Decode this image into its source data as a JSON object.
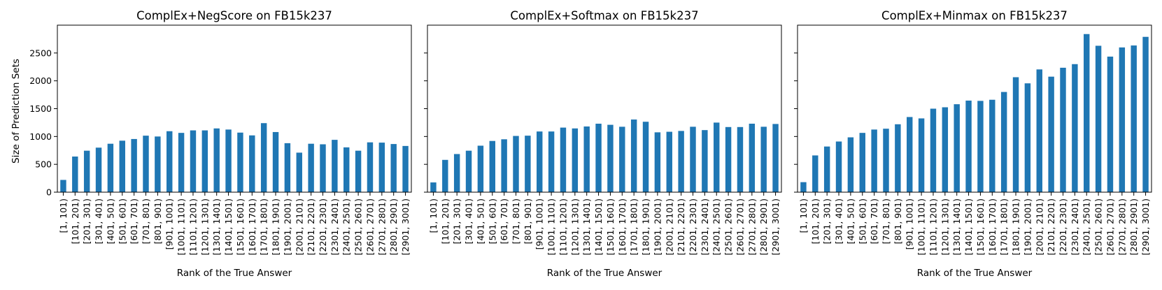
{
  "figure": {
    "shared_ylabel": "Size of Prediction Sets",
    "bar_color": "#1f77b4"
  },
  "chart_data": [
    {
      "type": "bar",
      "title": "ComplEx+NegScore on FB15k237",
      "xlabel": "Rank of the True Answer",
      "ylabel": "Size of Prediction Sets",
      "ylim": [
        0,
        3000
      ],
      "yticks": [
        0,
        500,
        1000,
        1500,
        2000,
        2500
      ],
      "categories": [
        "[1, 101)",
        "[101, 201)",
        "[201, 301)",
        "[301, 401)",
        "[401, 501)",
        "[501, 601)",
        "[601, 701)",
        "[701, 801)",
        "[801, 901)",
        "[901, 1001)",
        "[1001, 1101)",
        "[1101, 1201)",
        "[1201, 1301)",
        "[1301, 1401)",
        "[1401, 1501)",
        "[1501, 1601)",
        "[1601, 1701)",
        "[1701, 1801)",
        "[1801, 1901)",
        "[1901, 2001)",
        "[2001, 2101)",
        "[2101, 2201)",
        "[2201, 2301)",
        "[2301, 2401)",
        "[2401, 2501)",
        "[2501, 2601)",
        "[2601, 2701)",
        "[2701, 2801)",
        "[2801, 2901)",
        "[2901, 3001)"
      ],
      "values": [
        220,
        640,
        745,
        800,
        870,
        925,
        955,
        1015,
        1000,
        1095,
        1065,
        1110,
        1110,
        1145,
        1125,
        1070,
        1020,
        1240,
        1080,
        880,
        710,
        870,
        860,
        940,
        805,
        745,
        895,
        890,
        865,
        830
      ]
    },
    {
      "type": "bar",
      "title": "ComplEx+Softmax on FB15k237",
      "xlabel": "Rank of the True Answer",
      "ylim": [
        0,
        3000
      ],
      "yticks": [
        0,
        500,
        1000,
        1500,
        2000,
        2500
      ],
      "categories": [
        "[1, 101)",
        "[101, 201)",
        "[201, 301)",
        "[301, 401)",
        "[401, 501)",
        "[501, 601)",
        "[601, 701)",
        "[701, 801)",
        "[801, 901)",
        "[901, 1001)",
        "[1001, 1101)",
        "[1101, 1201)",
        "[1201, 1301)",
        "[1301, 1401)",
        "[1401, 1501)",
        "[1501, 1601)",
        "[1601, 1701)",
        "[1701, 1801)",
        "[1801, 1901)",
        "[1901, 2001)",
        "[2001, 2101)",
        "[2101, 2201)",
        "[2201, 2301)",
        "[2301, 2401)",
        "[2401, 2501)",
        "[2501, 2601)",
        "[2601, 2701)",
        "[2701, 2801)",
        "[2801, 2901)",
        "[2901, 3001)"
      ],
      "values": [
        175,
        580,
        685,
        745,
        835,
        920,
        950,
        1010,
        1015,
        1090,
        1090,
        1160,
        1145,
        1180,
        1230,
        1210,
        1175,
        1305,
        1265,
        1075,
        1085,
        1100,
        1175,
        1115,
        1250,
        1170,
        1170,
        1230,
        1175,
        1225
      ]
    },
    {
      "type": "bar",
      "title": "ComplEx+Minmax on FB15k237",
      "xlabel": "Rank of the True Answer",
      "ylim": [
        0,
        3000
      ],
      "yticks": [
        0,
        500,
        1000,
        1500,
        2000,
        2500
      ],
      "categories": [
        "[1, 101)",
        "[101, 201)",
        "[201, 301)",
        "[301, 401)",
        "[401, 501)",
        "[501, 601)",
        "[601, 701)",
        "[701, 801)",
        "[801, 901)",
        "[901, 1001)",
        "[1001, 1101)",
        "[1101, 1201)",
        "[1201, 1301)",
        "[1301, 1401)",
        "[1401, 1501)",
        "[1501, 1601)",
        "[1601, 1701)",
        "[1701, 1801)",
        "[1801, 1901)",
        "[1901, 2001)",
        "[2001, 2101)",
        "[2101, 2201)",
        "[2201, 2301)",
        "[2301, 2401)",
        "[2401, 2501)",
        "[2501, 2601)",
        "[2601, 2701)",
        "[2701, 2801)",
        "[2801, 2901)",
        "[2901, 3001)"
      ],
      "values": [
        180,
        660,
        820,
        910,
        985,
        1065,
        1125,
        1140,
        1220,
        1350,
        1325,
        1500,
        1525,
        1580,
        1645,
        1640,
        1660,
        1800,
        2065,
        1955,
        2205,
        2075,
        2235,
        2300,
        2840,
        2630,
        2435,
        2600,
        2635,
        2790
      ]
    }
  ]
}
